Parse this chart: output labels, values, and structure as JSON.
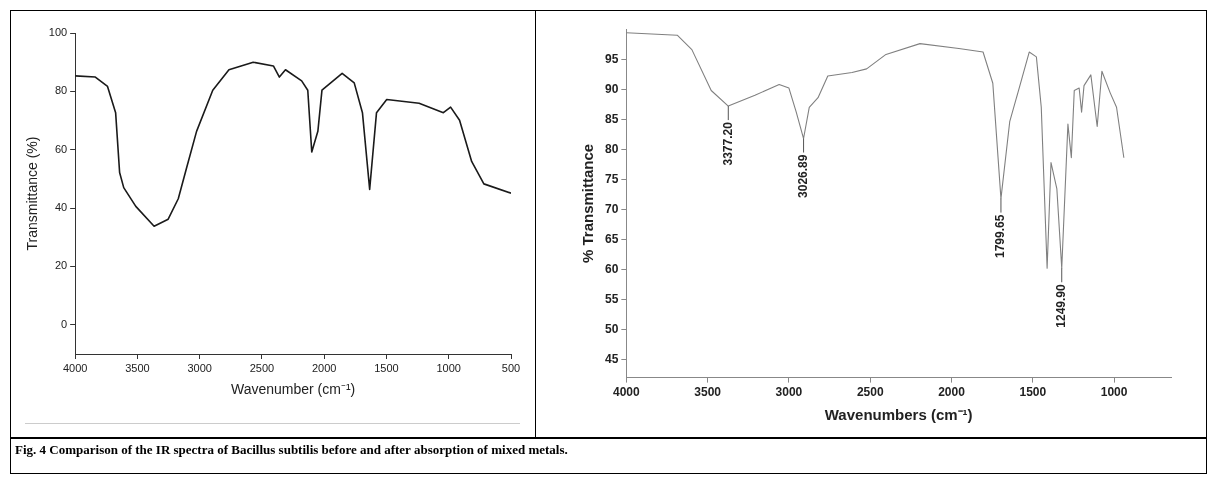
{
  "chart_data": [
    {
      "type": "line",
      "xlabel": "Wavenumber (cm⁻¹)",
      "ylabel": "Transmittance (%)",
      "xlim": [
        4000,
        500
      ],
      "xticks": [
        4000,
        3500,
        3000,
        2500,
        2000,
        1500,
        1000,
        500
      ],
      "ylim": [
        -10,
        100
      ],
      "yticks": [
        0,
        20,
        40,
        60,
        80,
        100
      ],
      "grid": false,
      "legend": false,
      "marker": "none",
      "line_style": "solid",
      "series": [
        {
          "color": "#1a1a1a",
          "x": [
            4000,
            3838,
            3740,
            3675,
            3643,
            3610,
            3513,
            3366,
            3253,
            3172,
            3107,
            3025,
            2895,
            2765,
            2570,
            2408,
            2360,
            2311,
            2181,
            2132,
            2100,
            2051,
            2018,
            1856,
            1759,
            1693,
            1635,
            1580,
            1498,
            1238,
            1043,
            985,
            913,
            816,
            718,
            500
          ],
          "values": [
            85.3,
            84.9,
            81.7,
            72.7,
            52.2,
            47,
            40.6,
            33.8,
            36.2,
            43.2,
            53.5,
            66.3,
            80.4,
            87.4,
            90,
            88.7,
            84.9,
            87.4,
            83.6,
            80.4,
            59.2,
            66.3,
            80.4,
            86.2,
            82.9,
            72.7,
            46.4,
            72.7,
            77.2,
            75.9,
            72.7,
            74.6,
            70.1,
            56,
            48.3,
            45.1
          ]
        }
      ],
      "annotations": [
        "Fig. 4 Comparison of the IR spectra of Bacillus subtilis before and after absorption of mixed metals."
      ]
    },
    {
      "type": "line",
      "xlabel": "Wavenumbers (cm⁻¹)",
      "ylabel": "% Transmittance",
      "xlim": [
        4000,
        650
      ],
      "xticks": [
        4000,
        3500,
        3000,
        2500,
        2000,
        1500,
        1000
      ],
      "ylim": [
        42,
        100
      ],
      "yticks": [
        45,
        50,
        55,
        60,
        65,
        70,
        75,
        80,
        85,
        90,
        95
      ],
      "grid": false,
      "legend": false,
      "marker": "none",
      "line_style": "solid",
      "series": [
        {
          "color": "#808080",
          "x": [
            4000,
            3687,
            3597,
            3478,
            3373,
            3209,
            3060,
            3000,
            2955,
            2910,
            2875,
            2821,
            2761,
            2612,
            2522,
            2403,
            2194,
            1955,
            1806,
            1746,
            1696,
            1642,
            1567,
            1522,
            1478,
            1448,
            1412,
            1388,
            1352,
            1322,
            1284,
            1263,
            1245,
            1215,
            1200,
            1185,
            1143,
            1104,
            1075,
            1024,
            985,
            940
          ],
          "values": [
            99.4,
            99,
            96.6,
            89.8,
            87.2,
            89,
            90.8,
            90.2,
            86.2,
            81.8,
            87,
            88.6,
            92.2,
            92.8,
            93.4,
            95.8,
            97.6,
            96.8,
            96.2,
            91,
            71.8,
            84.6,
            91.8,
            96.2,
            95.4,
            87,
            60.2,
            77.8,
            73.4,
            60.2,
            84.2,
            78.6,
            89.8,
            90.2,
            86.2,
            90.6,
            92.4,
            83.8,
            93,
            89.4,
            87,
            78.6
          ]
        }
      ],
      "annotations": [
        {
          "text": "3377.20",
          "x": 3373,
          "y": 87.2
        },
        {
          "text": "3026.89",
          "x": 2910,
          "y": 81.8
        },
        {
          "text": "1799.65",
          "x": 1696,
          "y": 71.8
        },
        {
          "text": "1249.90",
          "x": 1322,
          "y": 60.2
        }
      ]
    }
  ]
}
